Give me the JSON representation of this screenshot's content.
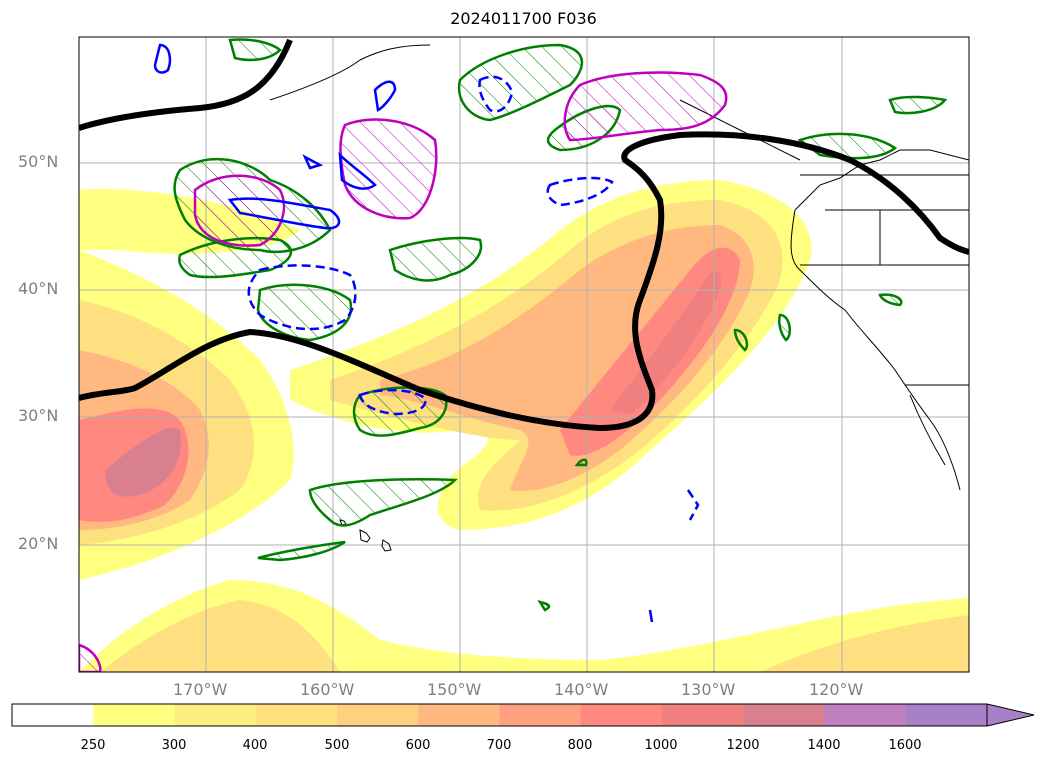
{
  "title": "2024011700 F036",
  "map": {
    "latitude_labels": [
      "50°N",
      "40°N",
      "30°N",
      "20°N"
    ],
    "longitude_labels": [
      "170°W",
      "160°W",
      "150°W",
      "140°W",
      "130°W",
      "120°W"
    ],
    "colors": {
      "contour_black": "#000000",
      "contour_green": "#008000",
      "contour_blue": "#0000ff",
      "contour_magenta": "#bf00bf",
      "grid": "#b0b0b0"
    }
  },
  "colorbar": {
    "tick_labels": [
      "250",
      "300",
      "400",
      "500",
      "600",
      "700",
      "800",
      "1000",
      "1200",
      "1400",
      "1600"
    ],
    "bins": [
      {
        "label": "<250",
        "color": "#ffffff"
      },
      {
        "label": "250-300",
        "color": "#ffff80"
      },
      {
        "label": "300-400",
        "color": "#ffee80"
      },
      {
        "label": "400-500",
        "color": "#ffe080"
      },
      {
        "label": "500-600",
        "color": "#ffd080"
      },
      {
        "label": "600-700",
        "color": "#ffb880"
      },
      {
        "label": "700-800",
        "color": "#ffa080"
      },
      {
        "label": "800-1000",
        "color": "#ff8880"
      },
      {
        "label": "1000-1200",
        "color": "#f08080"
      },
      {
        "label": "1200-1400",
        "color": "#d88090"
      },
      {
        "label": "1400-1600",
        "color": "#c080c0"
      },
      {
        "label": ">1600",
        "color": "#a880c8"
      }
    ],
    "extend": "max"
  }
}
